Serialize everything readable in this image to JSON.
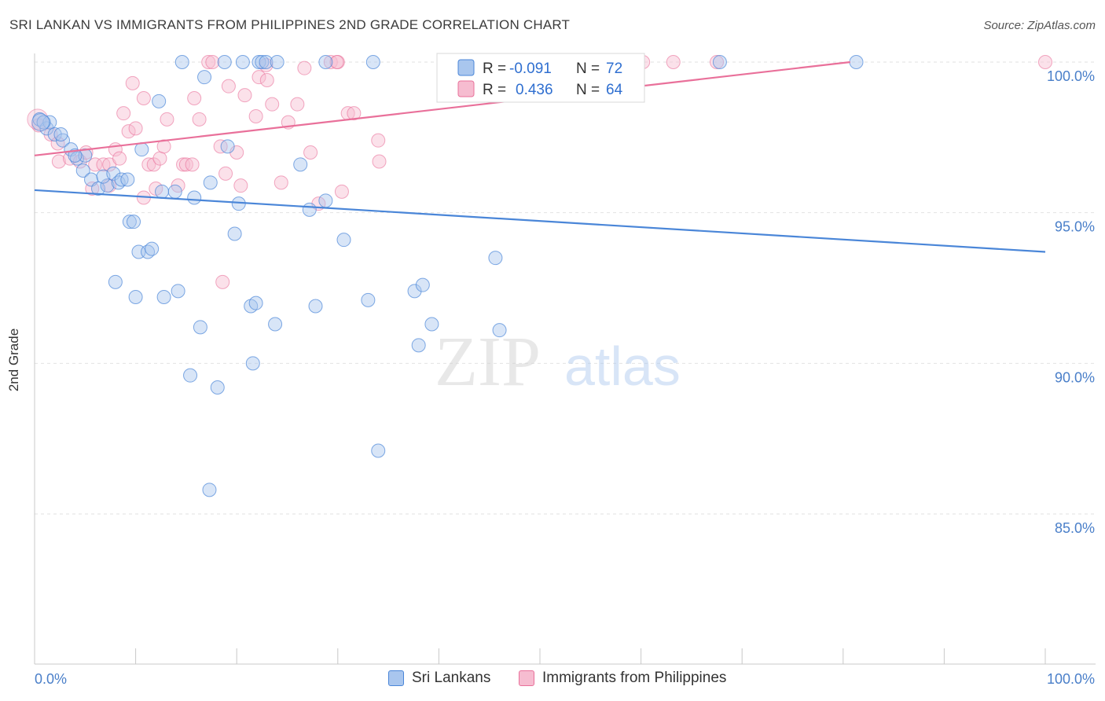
{
  "title": "SRI LANKAN VS IMMIGRANTS FROM PHILIPPINES 2ND GRADE CORRELATION CHART",
  "source": "Source: ZipAtlas.com",
  "watermark": {
    "zip": "ZIP",
    "atlas": "atlas"
  },
  "legend_box": [
    {
      "r_label": "R =",
      "r_value": "-0.091",
      "n_label": "N =",
      "n_value": "72"
    },
    {
      "r_label": "R =",
      "r_value": "0.436",
      "n_label": "N =",
      "n_value": "64"
    }
  ],
  "bottom_legend": [
    "Sri Lankans",
    "Immigrants from Philippines"
  ],
  "chart_data": {
    "type": "scatter",
    "xlabel": "",
    "ylabel": "2nd Grade",
    "xlim": [
      0,
      100
    ],
    "ylim": [
      80,
      100.7
    ],
    "x_tick_labels": [
      "0.0%",
      "100.0%"
    ],
    "y_ticks": [
      100,
      95,
      90,
      85
    ],
    "y_tick_labels": [
      "100.0%",
      "95.0%",
      "90.0%",
      "85.0%"
    ],
    "grid": true,
    "colors": {
      "blue": "#4a86d8",
      "pink": "#e9709a",
      "blue_fill": "#a9c6ee",
      "pink_fill": "#f6bcd0"
    },
    "series": [
      {
        "name": "Sri Lankans",
        "color": "#4a86d8",
        "trend": {
          "x": [
            0,
            100
          ],
          "y": [
            95.75,
            93.7
          ]
        },
        "points": [
          [
            0.5,
            98.1
          ],
          [
            1.2,
            97.8
          ],
          [
            1.5,
            98.0
          ],
          [
            2.0,
            97.6
          ],
          [
            2.8,
            97.4
          ],
          [
            3.6,
            97.1
          ],
          [
            4.2,
            96.8
          ],
          [
            5.0,
            96.9
          ],
          [
            4.8,
            96.4
          ],
          [
            5.6,
            96.1
          ],
          [
            6.3,
            95.8
          ],
          [
            7.2,
            95.9
          ],
          [
            6.8,
            96.2
          ],
          [
            7.8,
            96.3
          ],
          [
            8.3,
            96.0
          ],
          [
            8.6,
            96.1
          ],
          [
            9.2,
            96.1
          ],
          [
            10.6,
            97.1
          ],
          [
            9.4,
            94.7
          ],
          [
            9.8,
            94.7
          ],
          [
            10.3,
            93.7
          ],
          [
            11.2,
            93.7
          ],
          [
            11.6,
            93.8
          ],
          [
            8.0,
            92.7
          ],
          [
            10.0,
            92.2
          ],
          [
            12.8,
            92.2
          ],
          [
            14.2,
            92.4
          ],
          [
            12.3,
            98.7
          ],
          [
            14.6,
            100.0
          ],
          [
            16.8,
            99.5
          ],
          [
            18.8,
            100.0
          ],
          [
            20.6,
            100.0
          ],
          [
            22.2,
            100.0
          ],
          [
            22.5,
            100.0
          ],
          [
            22.9,
            100.0
          ],
          [
            24.0,
            100.0
          ],
          [
            28.8,
            100.0
          ],
          [
            33.5,
            100.0
          ],
          [
            56.0,
            100.0
          ],
          [
            67.8,
            100.0
          ],
          [
            81.3,
            100.0
          ],
          [
            12.6,
            95.7
          ],
          [
            13.9,
            95.7
          ],
          [
            15.8,
            95.5
          ],
          [
            17.4,
            96.0
          ],
          [
            19.1,
            97.2
          ],
          [
            20.2,
            95.3
          ],
          [
            19.8,
            94.3
          ],
          [
            21.4,
            91.9
          ],
          [
            21.9,
            92.0
          ],
          [
            23.8,
            91.3
          ],
          [
            27.8,
            91.9
          ],
          [
            26.3,
            96.6
          ],
          [
            28.8,
            95.4
          ],
          [
            27.2,
            95.1
          ],
          [
            30.6,
            94.1
          ],
          [
            33.0,
            92.1
          ],
          [
            37.6,
            92.4
          ],
          [
            38.4,
            92.6
          ],
          [
            39.3,
            91.3
          ],
          [
            38.0,
            90.6
          ],
          [
            45.6,
            93.5
          ],
          [
            46.0,
            91.1
          ],
          [
            21.6,
            90.0
          ],
          [
            16.4,
            91.2
          ],
          [
            15.4,
            89.6
          ],
          [
            18.1,
            89.2
          ],
          [
            34.0,
            87.1
          ],
          [
            17.3,
            85.8
          ],
          [
            0.9,
            98.0
          ],
          [
            4.0,
            96.9
          ],
          [
            2.6,
            97.6
          ]
        ]
      },
      {
        "name": "Immigrants from Philippines",
        "color": "#e9709a",
        "trend": {
          "x": [
            0,
            80.7
          ],
          "y": [
            96.9,
            100.0
          ]
        },
        "points": [
          [
            0.4,
            97.9
          ],
          [
            1.6,
            97.6
          ],
          [
            2.3,
            97.3
          ],
          [
            2.4,
            96.7
          ],
          [
            3.5,
            96.8
          ],
          [
            4.5,
            96.7
          ],
          [
            5.1,
            97.0
          ],
          [
            6.0,
            96.6
          ],
          [
            6.8,
            96.6
          ],
          [
            7.4,
            96.6
          ],
          [
            8.0,
            97.1
          ],
          [
            8.4,
            96.8
          ],
          [
            8.8,
            98.3
          ],
          [
            9.3,
            97.7
          ],
          [
            10.0,
            97.8
          ],
          [
            9.7,
            99.3
          ],
          [
            10.8,
            98.8
          ],
          [
            11.3,
            96.6
          ],
          [
            11.8,
            96.6
          ],
          [
            12.4,
            96.8
          ],
          [
            12.8,
            97.2
          ],
          [
            13.1,
            98.1
          ],
          [
            14.2,
            95.9
          ],
          [
            14.7,
            96.6
          ],
          [
            15.0,
            96.6
          ],
          [
            15.8,
            98.8
          ],
          [
            16.3,
            98.1
          ],
          [
            17.2,
            100.0
          ],
          [
            17.6,
            100.0
          ],
          [
            18.4,
            97.2
          ],
          [
            18.9,
            96.3
          ],
          [
            19.2,
            99.2
          ],
          [
            20.0,
            97.0
          ],
          [
            20.4,
            95.9
          ],
          [
            20.8,
            98.9
          ],
          [
            21.9,
            98.2
          ],
          [
            22.2,
            99.5
          ],
          [
            23.0,
            99.4
          ],
          [
            23.5,
            98.6
          ],
          [
            24.4,
            96.0
          ],
          [
            25.1,
            98.0
          ],
          [
            26.0,
            98.6
          ],
          [
            26.7,
            99.8
          ],
          [
            27.3,
            97.0
          ],
          [
            28.1,
            95.3
          ],
          [
            29.3,
            100.0
          ],
          [
            30.0,
            100.0
          ],
          [
            30.4,
            95.7
          ],
          [
            31.0,
            98.3
          ],
          [
            31.6,
            98.3
          ],
          [
            34.0,
            97.4
          ],
          [
            34.1,
            96.7
          ],
          [
            18.6,
            92.7
          ],
          [
            10.8,
            95.5
          ],
          [
            5.7,
            95.8
          ],
          [
            12.0,
            95.8
          ],
          [
            15.6,
            96.6
          ],
          [
            7.4,
            95.9
          ],
          [
            60.2,
            100.0
          ],
          [
            63.2,
            100.0
          ],
          [
            67.5,
            100.0
          ],
          [
            100.0,
            100.0
          ],
          [
            22.9,
            99.9
          ],
          [
            29.9,
            100.0
          ]
        ]
      }
    ]
  }
}
